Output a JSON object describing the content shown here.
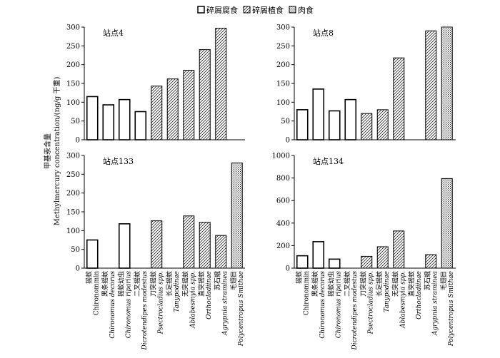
{
  "legend": {
    "detritivore": "碎屑腐食",
    "herbivore": "碎屑植食",
    "carnivore": "肉食"
  },
  "ylabel_cn": "甲基汞含量",
  "ylabel_en": "Methylmercury concentration/(ng/g 干重)",
  "categories": [
    {
      "cn": "摇蚊",
      "en": "Chironommin",
      "en_italic": false
    },
    {
      "cn": "黑条摇蚊",
      "en": "Chironomus decorus",
      "en_italic": true
    },
    {
      "cn": "摇蚊幼虫",
      "en": "Chironomus riparius",
      "en_italic": true
    },
    {
      "cn": "二叉摇蚊",
      "en": "Dicrotendipes modestus",
      "en_italic": true
    },
    {
      "cn": "刀突摇蚊",
      "en": "Psectrocladius spp.",
      "en_italic": true
    },
    {
      "cn": "长足摇蚊",
      "en": "Tanypodinae",
      "en_italic": true
    },
    {
      "cn": "无突摇蚊",
      "en": "Ablabesmyia spp.",
      "en_italic": true
    },
    {
      "cn": "直突摇蚊",
      "en": "Orthocladiinae",
      "en_italic": true
    },
    {
      "cn": "苏石蛾",
      "en": "Agrypnia straminea",
      "en_italic": true
    },
    {
      "cn": "毛翅目",
      "en": "Polycentropus Smithae",
      "en_italic": true
    }
  ],
  "chart_data": [
    {
      "type": "bar",
      "title": "站点4",
      "ylim": [
        0,
        300
      ],
      "yticks": [
        0,
        50,
        100,
        150,
        200,
        250,
        300
      ],
      "values": [
        115,
        93,
        107,
        75,
        143,
        162,
        185,
        240,
        297,
        null
      ],
      "groups": [
        "detritivore",
        "detritivore",
        "detritivore",
        "detritivore",
        "herbivore",
        "herbivore",
        "herbivore",
        "herbivore",
        "herbivore",
        "carnivore"
      ]
    },
    {
      "type": "bar",
      "title": "站点8",
      "ylim": [
        0,
        300
      ],
      "yticks": [
        0,
        50,
        100,
        150,
        200,
        250,
        300
      ],
      "values": [
        80,
        135,
        77,
        107,
        70,
        80,
        218,
        null,
        290,
        300
      ],
      "groups": [
        "detritivore",
        "detritivore",
        "detritivore",
        "detritivore",
        "herbivore",
        "herbivore",
        "herbivore",
        "herbivore",
        "herbivore",
        "carnivore"
      ]
    },
    {
      "type": "bar",
      "title": "站点133",
      "ylim": [
        0,
        300
      ],
      "yticks": [
        0,
        50,
        100,
        150,
        200,
        250,
        300
      ],
      "values": [
        75,
        null,
        118,
        null,
        126,
        null,
        139,
        122,
        87,
        280
      ],
      "groups": [
        "detritivore",
        "detritivore",
        "detritivore",
        "detritivore",
        "herbivore",
        "herbivore",
        "herbivore",
        "herbivore",
        "herbivore",
        "carnivore"
      ]
    },
    {
      "type": "bar",
      "title": "站点134",
      "ylim": [
        0,
        1000
      ],
      "yticks": [
        0,
        200,
        400,
        600,
        800,
        1000
      ],
      "values": [
        110,
        235,
        80,
        null,
        105,
        190,
        330,
        null,
        120,
        795
      ],
      "groups": [
        "detritivore",
        "detritivore",
        "detritivore",
        "detritivore",
        "herbivore",
        "herbivore",
        "herbivore",
        "herbivore",
        "herbivore",
        "carnivore"
      ]
    }
  ]
}
